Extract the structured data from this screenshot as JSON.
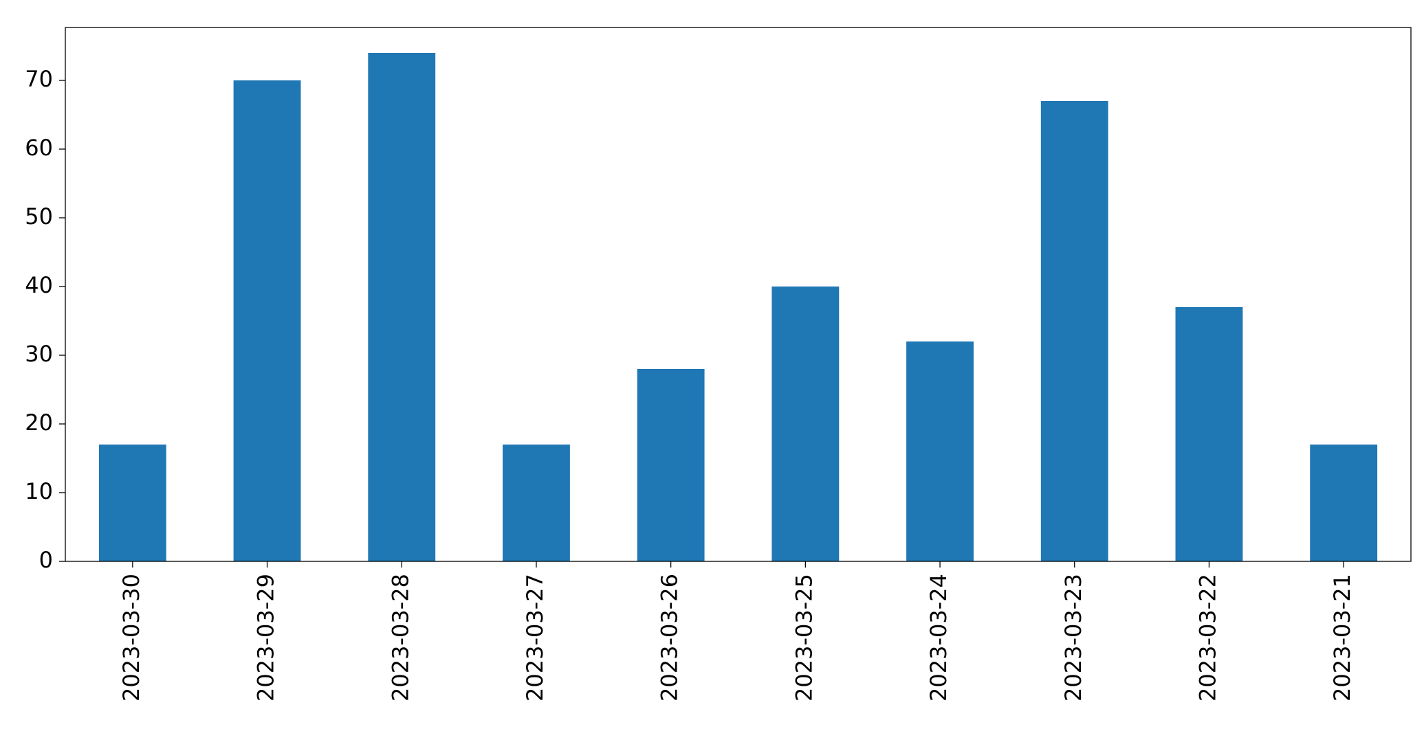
{
  "chart_data": {
    "type": "bar",
    "categories": [
      "2023-03-30",
      "2023-03-29",
      "2023-03-28",
      "2023-03-27",
      "2023-03-26",
      "2023-03-25",
      "2023-03-24",
      "2023-03-23",
      "2023-03-22",
      "2023-03-21"
    ],
    "values": [
      17,
      70,
      74,
      17,
      28,
      40,
      32,
      67,
      37,
      17
    ],
    "color": "#1f77b4",
    "ylim": [
      0,
      77.7
    ],
    "yticks": [
      0,
      10,
      20,
      30,
      40,
      50,
      60,
      70
    ],
    "grid": false
  }
}
